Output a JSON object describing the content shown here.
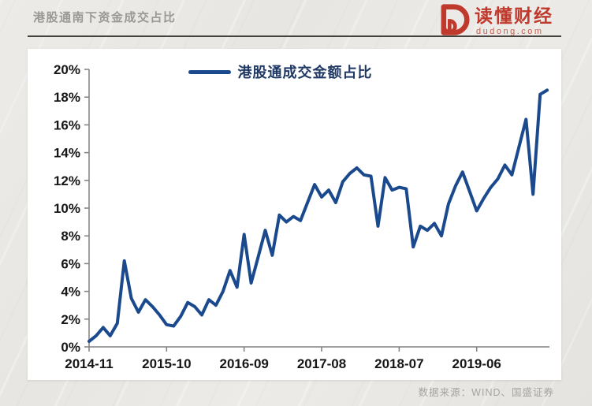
{
  "header": {
    "title": "港股通南下资金成交占比",
    "logo_text": "读懂财经",
    "logo_domain": "dudong.com"
  },
  "footer": {
    "source": "数据来源：WIND、国盛证券"
  },
  "colors": {
    "brand_red": "#bf3a2d",
    "line_blue": "#1a4a8d",
    "legend_text_navy": "#1f3864",
    "title_gray": "#9a9896",
    "axis_gray": "#808080"
  },
  "chart_data": {
    "type": "line",
    "title": "港股通南下资金成交占比",
    "legend": [
      "港股通成交金额占比"
    ],
    "legend_position": "top-center",
    "grid": false,
    "line_color": "#1a4a8d",
    "xlabel": "",
    "ylabel": "",
    "ylim": [
      0,
      20
    ],
    "y_unit": "%",
    "y_tick_labels": [
      "0%",
      "2%",
      "4%",
      "6%",
      "8%",
      "10%",
      "12%",
      "14%",
      "16%",
      "18%",
      "20%"
    ],
    "x_tick_labels": [
      "2014-11",
      "2015-10",
      "2016-09",
      "2017-08",
      "2018-07",
      "2019-06"
    ],
    "x": [
      "2014-11",
      "2014-12",
      "2015-01",
      "2015-02",
      "2015-03",
      "2015-04",
      "2015-05",
      "2015-06",
      "2015-07",
      "2015-08",
      "2015-09",
      "2015-10",
      "2015-11",
      "2015-12",
      "2016-01",
      "2016-02",
      "2016-03",
      "2016-04",
      "2016-05",
      "2016-06",
      "2016-07",
      "2016-08",
      "2016-09",
      "2016-10",
      "2016-11",
      "2016-12",
      "2017-01",
      "2017-02",
      "2017-03",
      "2017-04",
      "2017-05",
      "2017-06",
      "2017-07",
      "2017-08",
      "2017-09",
      "2017-10",
      "2017-11",
      "2017-12",
      "2018-01",
      "2018-02",
      "2018-03",
      "2018-04",
      "2018-05",
      "2018-06",
      "2018-07",
      "2018-08",
      "2018-09",
      "2018-10",
      "2018-11",
      "2018-12",
      "2019-01",
      "2019-02",
      "2019-03",
      "2019-04",
      "2019-05",
      "2019-06",
      "2019-07",
      "2019-08",
      "2019-09",
      "2019-10",
      "2019-11",
      "2019-12",
      "2020-01",
      "2020-02",
      "2020-03",
      "2020-04"
    ],
    "values": [
      0.4,
      0.8,
      1.4,
      0.8,
      1.7,
      6.2,
      3.5,
      2.5,
      3.4,
      2.9,
      2.3,
      1.6,
      1.5,
      2.2,
      3.2,
      2.9,
      2.3,
      3.4,
      3.0,
      4.0,
      5.5,
      4.3,
      8.1,
      4.6,
      6.5,
      8.4,
      6.6,
      9.5,
      9.0,
      9.4,
      9.1,
      10.4,
      11.7,
      10.8,
      11.3,
      10.4,
      11.9,
      12.5,
      12.9,
      12.4,
      12.3,
      8.7,
      12.2,
      11.3,
      11.5,
      11.4,
      7.2,
      8.7,
      8.4,
      8.9,
      8.0,
      10.3,
      11.6,
      12.6,
      11.2,
      9.8,
      10.7,
      11.5,
      12.1,
      13.1,
      12.4,
      14.4,
      16.4,
      11.0,
      18.2,
      18.5
    ]
  }
}
